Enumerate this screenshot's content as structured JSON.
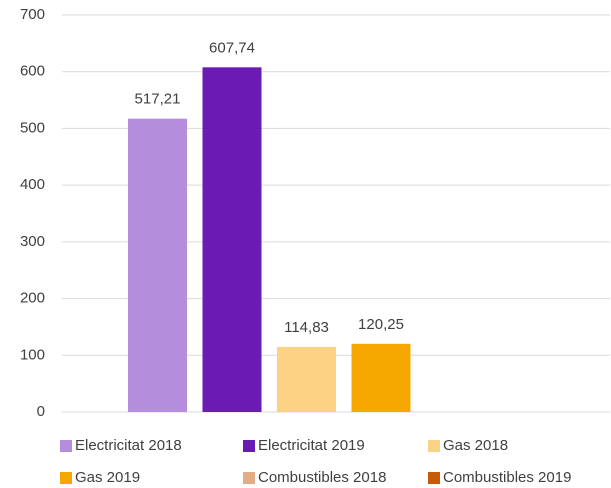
{
  "chart_data": {
    "type": "bar",
    "categories": [
      null
    ],
    "series": [
      {
        "name": "Electricitat 2018",
        "color": "#b48edc",
        "values": [
          517.21
        ],
        "value_labels": [
          "517,21"
        ]
      },
      {
        "name": "Electricitat 2019",
        "color": "#6a1bb4",
        "values": [
          607.74
        ],
        "value_labels": [
          "607,74"
        ]
      },
      {
        "name": "Gas 2018",
        "color": "#fcd385",
        "values": [
          114.83
        ],
        "value_labels": [
          "114,83"
        ]
      },
      {
        "name": "Gas 2019",
        "color": "#f7a800",
        "values": [
          120.25
        ],
        "value_labels": [
          "120,25"
        ]
      },
      {
        "name": "Combustibles 2018",
        "color": "#e2ad84",
        "values": [
          null
        ],
        "value_labels": [
          null
        ]
      },
      {
        "name": "Combustibles 2019",
        "color": "#c85a08",
        "values": [
          null
        ],
        "value_labels": [
          null
        ]
      }
    ],
    "ylim": [
      0,
      700
    ],
    "yticks": [
      0,
      100,
      200,
      300,
      400,
      500,
      600,
      700
    ],
    "grid": true,
    "legend": "bottom"
  }
}
